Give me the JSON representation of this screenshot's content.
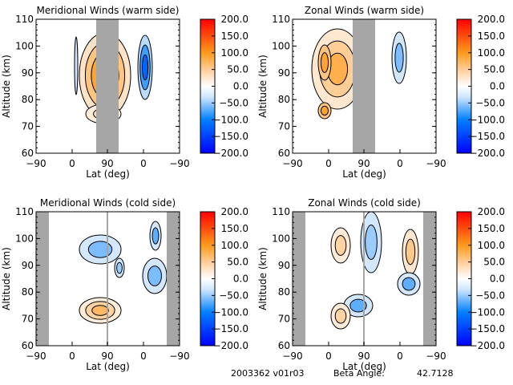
{
  "footer": {
    "orbit_id": "2003362 v01r03",
    "beta_label": "Beta Angle:",
    "beta_value": "42.7128"
  },
  "colors": {
    "gray_mask": "#a6a6a6",
    "frame": "#000000"
  },
  "chart_data": [
    {
      "type": "heatmap",
      "title": "Meridional Winds (warm side)",
      "xlabel": "Lat (deg)",
      "ylabel": "Altitude (km)",
      "xtick_labels": [
        "-90",
        "0",
        "90",
        "0",
        "-90"
      ],
      "ylim": [
        60,
        110
      ],
      "yticks": [
        60,
        70,
        80,
        90,
        100,
        110
      ],
      "colorbar": {
        "min": -200,
        "max": 200,
        "tick_labels": [
          "200.0",
          "150.0",
          "100.0",
          "50.0",
          "0.0",
          "-50.0",
          "-100.0",
          "-150.0",
          "-200.0"
        ]
      },
      "masked_lat_range": "dayside 60 to 120 (gray)",
      "features": [
        {
          "lat_span": "-80..20",
          "alt": "65..108",
          "sign": "positive",
          "peak": 125,
          "peak_alt": 97
        },
        {
          "lat_span": "130..155",
          "alt": "75..110",
          "sign": "negative",
          "peak": -140,
          "peak_alt": 100
        },
        {
          "lat_span": "-50..-90 (descending)",
          "alt": "66..110",
          "sign": "negative",
          "peak": -150,
          "peak_alt": 100
        }
      ]
    },
    {
      "type": "heatmap",
      "title": "Zonal Winds (warm side)",
      "xlabel": "Lat (deg)",
      "ylabel": "Altitude (km)",
      "xtick_labels": [
        "-90",
        "0",
        "90",
        "0",
        "-90"
      ],
      "ylim": [
        60,
        110
      ],
      "yticks": [
        60,
        70,
        80,
        90,
        100,
        110
      ],
      "colorbar": {
        "min": -200,
        "max": 200,
        "tick_labels": [
          "200.0",
          "150.0",
          "100.0",
          "50.0",
          "0.0",
          "-50.0",
          "-100.0",
          "-150.0",
          "-200.0"
        ]
      },
      "features": [
        {
          "lat_span": "-90..25",
          "alt": "66..108",
          "sign": "positive",
          "peak": 100,
          "peak_alt": 100
        },
        {
          "lat_span": "125..150",
          "alt": "78..110",
          "sign": "negative",
          "peak": -80,
          "peak_alt": 90
        },
        {
          "lat_span": "-60..-90 (descending)",
          "alt": "66..108",
          "sign": "positive",
          "peak": 110,
          "peak_alt": 74
        }
      ]
    },
    {
      "type": "heatmap",
      "title": "Meridional Winds (cold side)",
      "xlabel": "Lat (deg)",
      "ylabel": "Altitude (km)",
      "xtick_labels": [
        "-90",
        "0",
        "90",
        "0",
        "-90"
      ],
      "ylim": [
        60,
        110
      ],
      "yticks": [
        60,
        70,
        80,
        90,
        100,
        110
      ],
      "colorbar": {
        "min": -200,
        "max": 200,
        "tick_labels": [
          "200.0",
          "150.0",
          "100.0",
          "50.0",
          "0.0",
          "-50.0",
          "-100.0",
          "-150.0",
          "-200.0"
        ]
      },
      "features": [
        {
          "lat_span": "-70..40",
          "alt": "85..110",
          "sign": "negative",
          "peak": -60,
          "peak_alt": 103
        },
        {
          "lat_span": "-70..40",
          "alt": "68..82",
          "sign": "positive",
          "peak": 70,
          "peak_alt": 75
        },
        {
          "lat_span": "100..150",
          "alt": "78..110",
          "sign": "negative",
          "peak": -80,
          "peak_alt": 86
        },
        {
          "lat_span": "-40..-70 (descending)",
          "alt": "65..110",
          "sign": "negative",
          "peak": -90,
          "peak_alt": 78
        }
      ]
    },
    {
      "type": "heatmap",
      "title": "Zonal Winds (cold side)",
      "xlabel": "Lat (deg)",
      "ylabel": "Altitude (km)",
      "xtick_labels": [
        "-90",
        "0",
        "90",
        "0",
        "-90"
      ],
      "ylim": [
        60,
        110
      ],
      "yticks": [
        60,
        70,
        80,
        90,
        100,
        110
      ],
      "colorbar": {
        "min": -200,
        "max": 200,
        "tick_labels": [
          "200.0",
          "150.0",
          "100.0",
          "50.0",
          "0.0",
          "-50.0",
          "-100.0",
          "-150.0",
          "-200.0"
        ]
      },
      "features": [
        {
          "lat_span": "-70..-20",
          "alt": "90..105",
          "sign": "positive",
          "peak": 50,
          "peak_alt": 98
        },
        {
          "lat_span": "0..30",
          "alt": "88..110",
          "sign": "negative",
          "peak": -50,
          "peak_alt": 100
        },
        {
          "lat_span": "-70..-30",
          "alt": "68..78",
          "sign": "positive",
          "peak": 50,
          "peak_alt": 74
        },
        {
          "lat_span": "-20..30",
          "alt": "72..85",
          "sign": "negative",
          "peak": -80,
          "peak_alt": 78
        },
        {
          "lat_span": "110..140",
          "alt": "85..108",
          "sign": "positive",
          "peak": 60,
          "peak_alt": 97
        },
        {
          "lat_span": "95..130",
          "alt": "75..90",
          "sign": "negative",
          "peak": -80,
          "peak_alt": 84
        },
        {
          "lat_span": "-40..-70 (descending)",
          "alt": "65..110",
          "sign": "negative",
          "peak": -80,
          "peak_alt": 80
        }
      ]
    }
  ]
}
